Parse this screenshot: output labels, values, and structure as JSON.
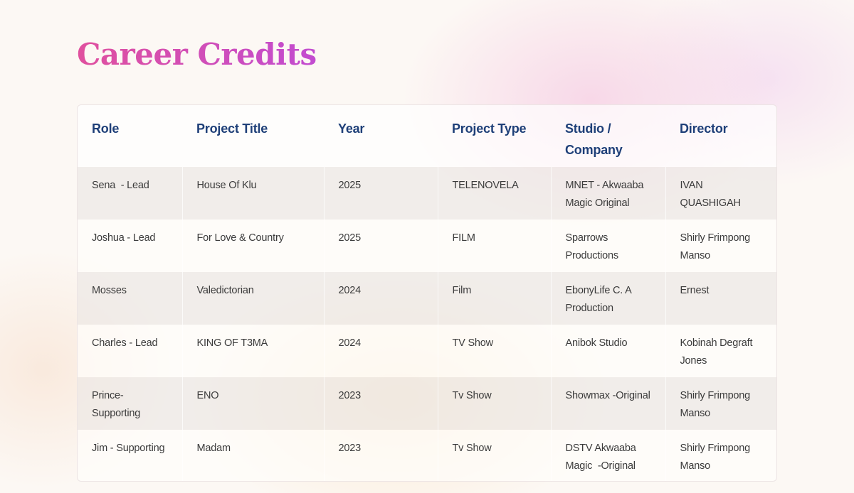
{
  "page": {
    "title": "Career Credits"
  },
  "table": {
    "headers": [
      "Role",
      "Project Title",
      "Year",
      "Project Type",
      "Studio /\nCompany",
      "Director"
    ],
    "rows": [
      [
        "Sena  - Lead",
        "House Of Klu",
        "2025",
        "TELENOVELA",
        "MNET - Akwaaba Magic Original",
        "IVAN QUASHIGAH"
      ],
      [
        "Joshua - Lead",
        "For Love & Country",
        "2025",
        "FILM",
        "Sparrows Productions",
        "Shirly Frimpong Manso"
      ],
      [
        "Mosses",
        "Valedictorian",
        "2024",
        "Film",
        "EbonyLife C. A Production",
        "Ernest"
      ],
      [
        "Charles - Lead",
        "KING OF T3MA",
        "2024",
        "TV Show",
        "Anibok Studio",
        "Kobinah Degraft Jones"
      ],
      [
        "Prince- Supporting",
        "ENO",
        "2023",
        "Tv Show",
        "Showmax -Original",
        "Shirly Frimpong Manso"
      ],
      [
        "Jim - Supporting",
        "Madam",
        "2023",
        "Tv Show",
        "DSTV Akwaaba Magic  -Original",
        "Shirly Frimpong Manso"
      ]
    ]
  },
  "colors": {
    "title_gradient_start": "#e0509e",
    "title_gradient_end": "#c24cd0",
    "header_text": "#1e3f78",
    "body_text": "#3b3b3b"
  }
}
